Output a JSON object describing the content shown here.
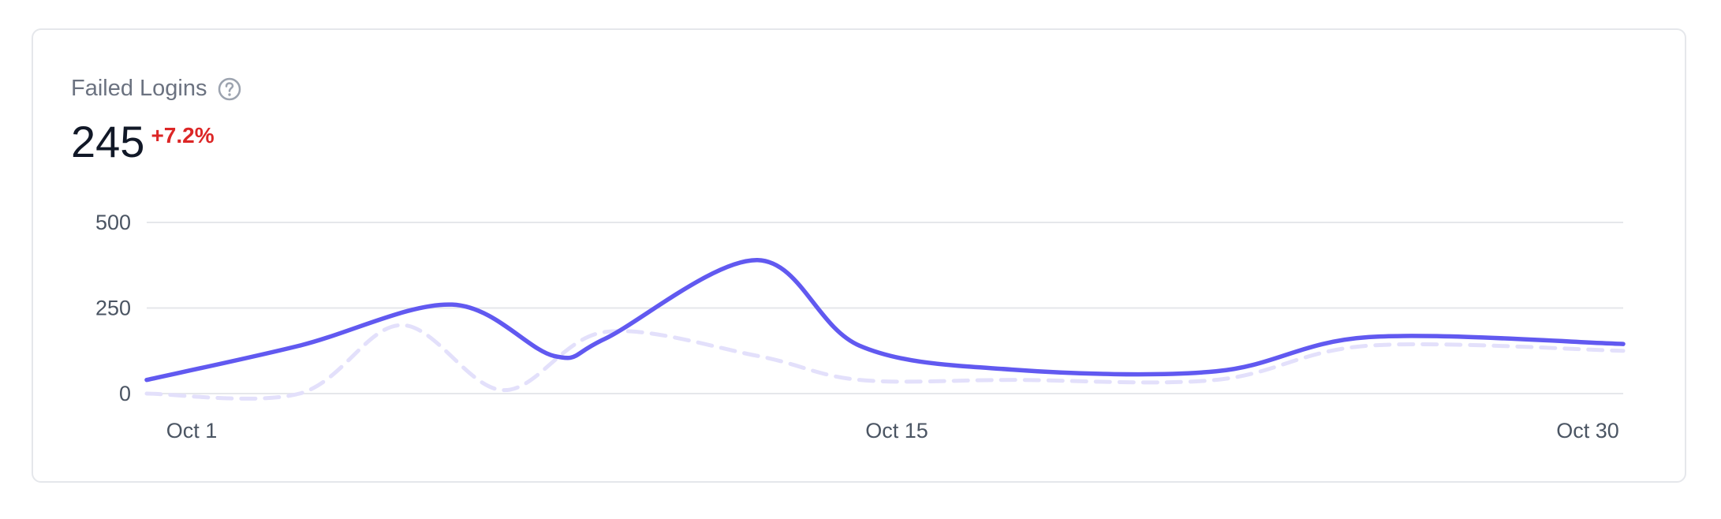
{
  "card": {
    "title": "Failed Logins",
    "help_icon": "help-circle-icon",
    "value": "245",
    "delta": "+7.2%",
    "colors": {
      "primary": "#6159f0",
      "comparison": "#e3e0fb",
      "delta": "#dc2626"
    }
  },
  "chart_data": {
    "type": "line",
    "title": "",
    "xlabel": "",
    "ylabel": "",
    "x_tick_labels": [
      "Oct 1",
      "Oct 15",
      "Oct 30"
    ],
    "y_ticks": [
      0,
      250,
      500
    ],
    "ylim": [
      0,
      500
    ],
    "xlim": [
      1,
      30
    ],
    "grid": true,
    "series": [
      {
        "style": "solid",
        "x": [
          1,
          4,
          7,
          9,
          10,
          13,
          15,
          18,
          22,
          25,
          30
        ],
        "y": [
          40,
          140,
          260,
          110,
          160,
          390,
          140,
          70,
          65,
          165,
          145
        ]
      },
      {
        "style": "dashed",
        "x": [
          1,
          4,
          6,
          8,
          10,
          13,
          15,
          18,
          22,
          25,
          30
        ],
        "y": [
          0,
          0,
          200,
          10,
          180,
          110,
          40,
          40,
          40,
          140,
          125
        ]
      }
    ]
  }
}
